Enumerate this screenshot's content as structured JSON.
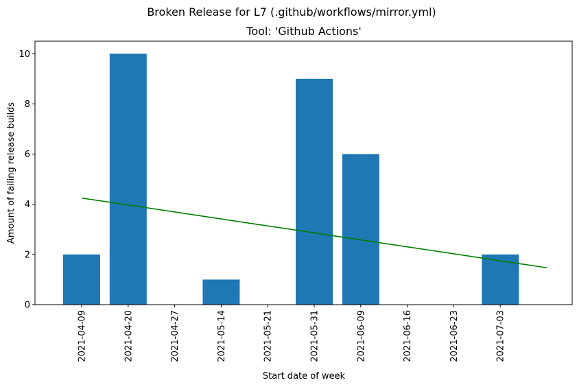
{
  "chart_data": {
    "type": "bar",
    "suptitle": "Broken Release for L7 (.github/workflows/mirror.yml)",
    "title": "Tool: 'Github Actions'",
    "xlabel": "Start date of week",
    "ylabel": "Amount of failing release builds",
    "categories": [
      "2021-04-09",
      "2021-04-20",
      "2021-04-27",
      "2021-05-14",
      "2021-05-21",
      "2021-05-31",
      "2021-06-09",
      "2021-06-16",
      "2021-06-23",
      "2021-07-03"
    ],
    "values": [
      2,
      10,
      0,
      1,
      0,
      9,
      6,
      0,
      0,
      2
    ],
    "ylim": [
      0,
      10.5
    ],
    "yticks": [
      0,
      2,
      4,
      6,
      8,
      10
    ],
    "trendline": {
      "start": 4.25,
      "end": 1.47,
      "extends_categories": 11
    },
    "grid": false,
    "colors": {
      "bar": "#1f77b4",
      "trend": "#008000"
    }
  }
}
